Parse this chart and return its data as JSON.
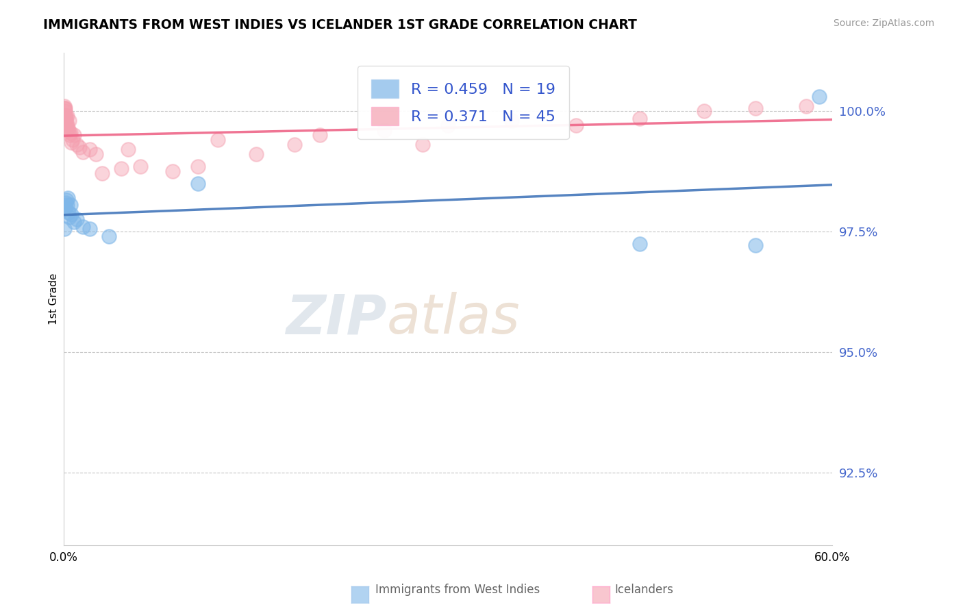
{
  "title": "IMMIGRANTS FROM WEST INDIES VS ICELANDER 1ST GRADE CORRELATION CHART",
  "source": "Source: ZipAtlas.com",
  "ylabel": "1st Grade",
  "y_ticks": [
    92.5,
    95.0,
    97.5,
    100.0
  ],
  "y_tick_labels": [
    "92.5%",
    "95.0%",
    "97.5%",
    "100.0%"
  ],
  "x_min": 0.0,
  "x_max": 60.0,
  "y_min": 91.0,
  "y_max": 101.2,
  "blue_R": 0.459,
  "blue_N": 19,
  "pink_R": 0.371,
  "pink_N": 45,
  "blue_color": "#7EB6E8",
  "pink_color": "#F4A0B0",
  "blue_line_color": "#4477BB",
  "pink_line_color": "#EE6688",
  "legend_label_blue": "Immigrants from West Indies",
  "legend_label_pink": "Icelanders",
  "watermark_zip": "ZIP",
  "watermark_atlas": "atlas",
  "blue_x": [
    0.05,
    0.1,
    0.15,
    0.2,
    0.25,
    0.3,
    0.35,
    0.4,
    0.5,
    0.6,
    0.8,
    1.0,
    1.5,
    2.0,
    3.5,
    10.5,
    45.0,
    54.0,
    59.0
  ],
  "blue_y": [
    97.55,
    98.0,
    98.1,
    98.15,
    98.05,
    98.2,
    97.9,
    97.8,
    98.05,
    97.85,
    97.7,
    97.75,
    97.6,
    97.55,
    97.4,
    98.5,
    97.25,
    97.22,
    100.3
  ],
  "pink_x": [
    0.03,
    0.05,
    0.07,
    0.08,
    0.1,
    0.12,
    0.14,
    0.15,
    0.17,
    0.2,
    0.22,
    0.25,
    0.28,
    0.3,
    0.35,
    0.4,
    0.45,
    0.5,
    0.6,
    0.7,
    0.8,
    1.0,
    1.2,
    1.5,
    2.0,
    2.5,
    3.0,
    4.5,
    5.0,
    6.0,
    8.5,
    10.5,
    12.0,
    15.0,
    18.0,
    20.0,
    25.0,
    28.0,
    30.0,
    35.0,
    40.0,
    45.0,
    50.0,
    54.0,
    58.0
  ],
  "pink_y": [
    100.05,
    100.1,
    100.05,
    99.9,
    100.0,
    100.05,
    99.85,
    99.9,
    99.8,
    99.75,
    99.6,
    99.9,
    99.7,
    99.65,
    99.6,
    99.8,
    99.5,
    99.55,
    99.35,
    99.4,
    99.5,
    99.3,
    99.25,
    99.15,
    99.2,
    99.1,
    98.7,
    98.8,
    99.2,
    98.85,
    98.75,
    98.85,
    99.4,
    99.1,
    99.3,
    99.5,
    99.6,
    99.3,
    99.7,
    99.8,
    99.7,
    99.85,
    100.0,
    100.05,
    100.1
  ]
}
